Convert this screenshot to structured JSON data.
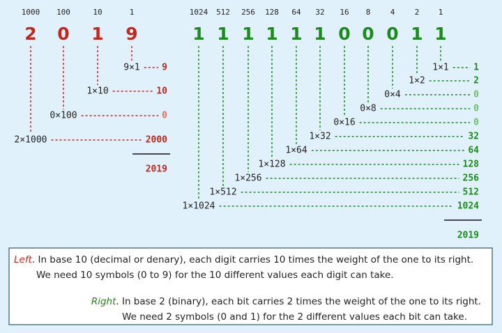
{
  "decimal": {
    "weights": [
      "1000",
      "100",
      "10",
      "1"
    ],
    "digits": [
      "2",
      "0",
      "1",
      "9"
    ],
    "terms": [
      {
        "label": "9×1",
        "value": "9"
      },
      {
        "label": "1×10",
        "value": "10"
      },
      {
        "label": "0×100",
        "value": "0"
      },
      {
        "label": "2×1000",
        "value": "2000"
      }
    ],
    "total": "2019"
  },
  "binary": {
    "weights": [
      "1024",
      "512",
      "256",
      "128",
      "64",
      "32",
      "16",
      "8",
      "4",
      "2",
      "1"
    ],
    "digits": [
      "1",
      "1",
      "1",
      "1",
      "1",
      "1",
      "0",
      "0",
      "0",
      "1",
      "1"
    ],
    "terms": [
      {
        "label": "1×1",
        "value": "1"
      },
      {
        "label": "1×2",
        "value": "2"
      },
      {
        "label": "0×4",
        "value": "0"
      },
      {
        "label": "0×8",
        "value": "0"
      },
      {
        "label": "0×16",
        "value": "0"
      },
      {
        "label": "1×32",
        "value": "32"
      },
      {
        "label": "1×64",
        "value": "64"
      },
      {
        "label": "1×128",
        "value": "128"
      },
      {
        "label": "1×256",
        "value": "256"
      },
      {
        "label": "1×512",
        "value": "512"
      },
      {
        "label": "1×1024",
        "value": "1024"
      }
    ],
    "total": "2019"
  },
  "caption": {
    "left": {
      "label": "Left",
      "text": ". In base 10 (decimal or denary), each digit carries 10 times the weight of the one to its right.",
      "text2": "We need 10 symbols (0 to 9) for the 10 different values each digit can take."
    },
    "right": {
      "label": "Right",
      "text": ". In base 2 (binary), each bit carries 2 times the weight of the one to its right.",
      "text2": "We need 2 symbols (0 and 1) for the 2 different values each bit can take."
    }
  }
}
